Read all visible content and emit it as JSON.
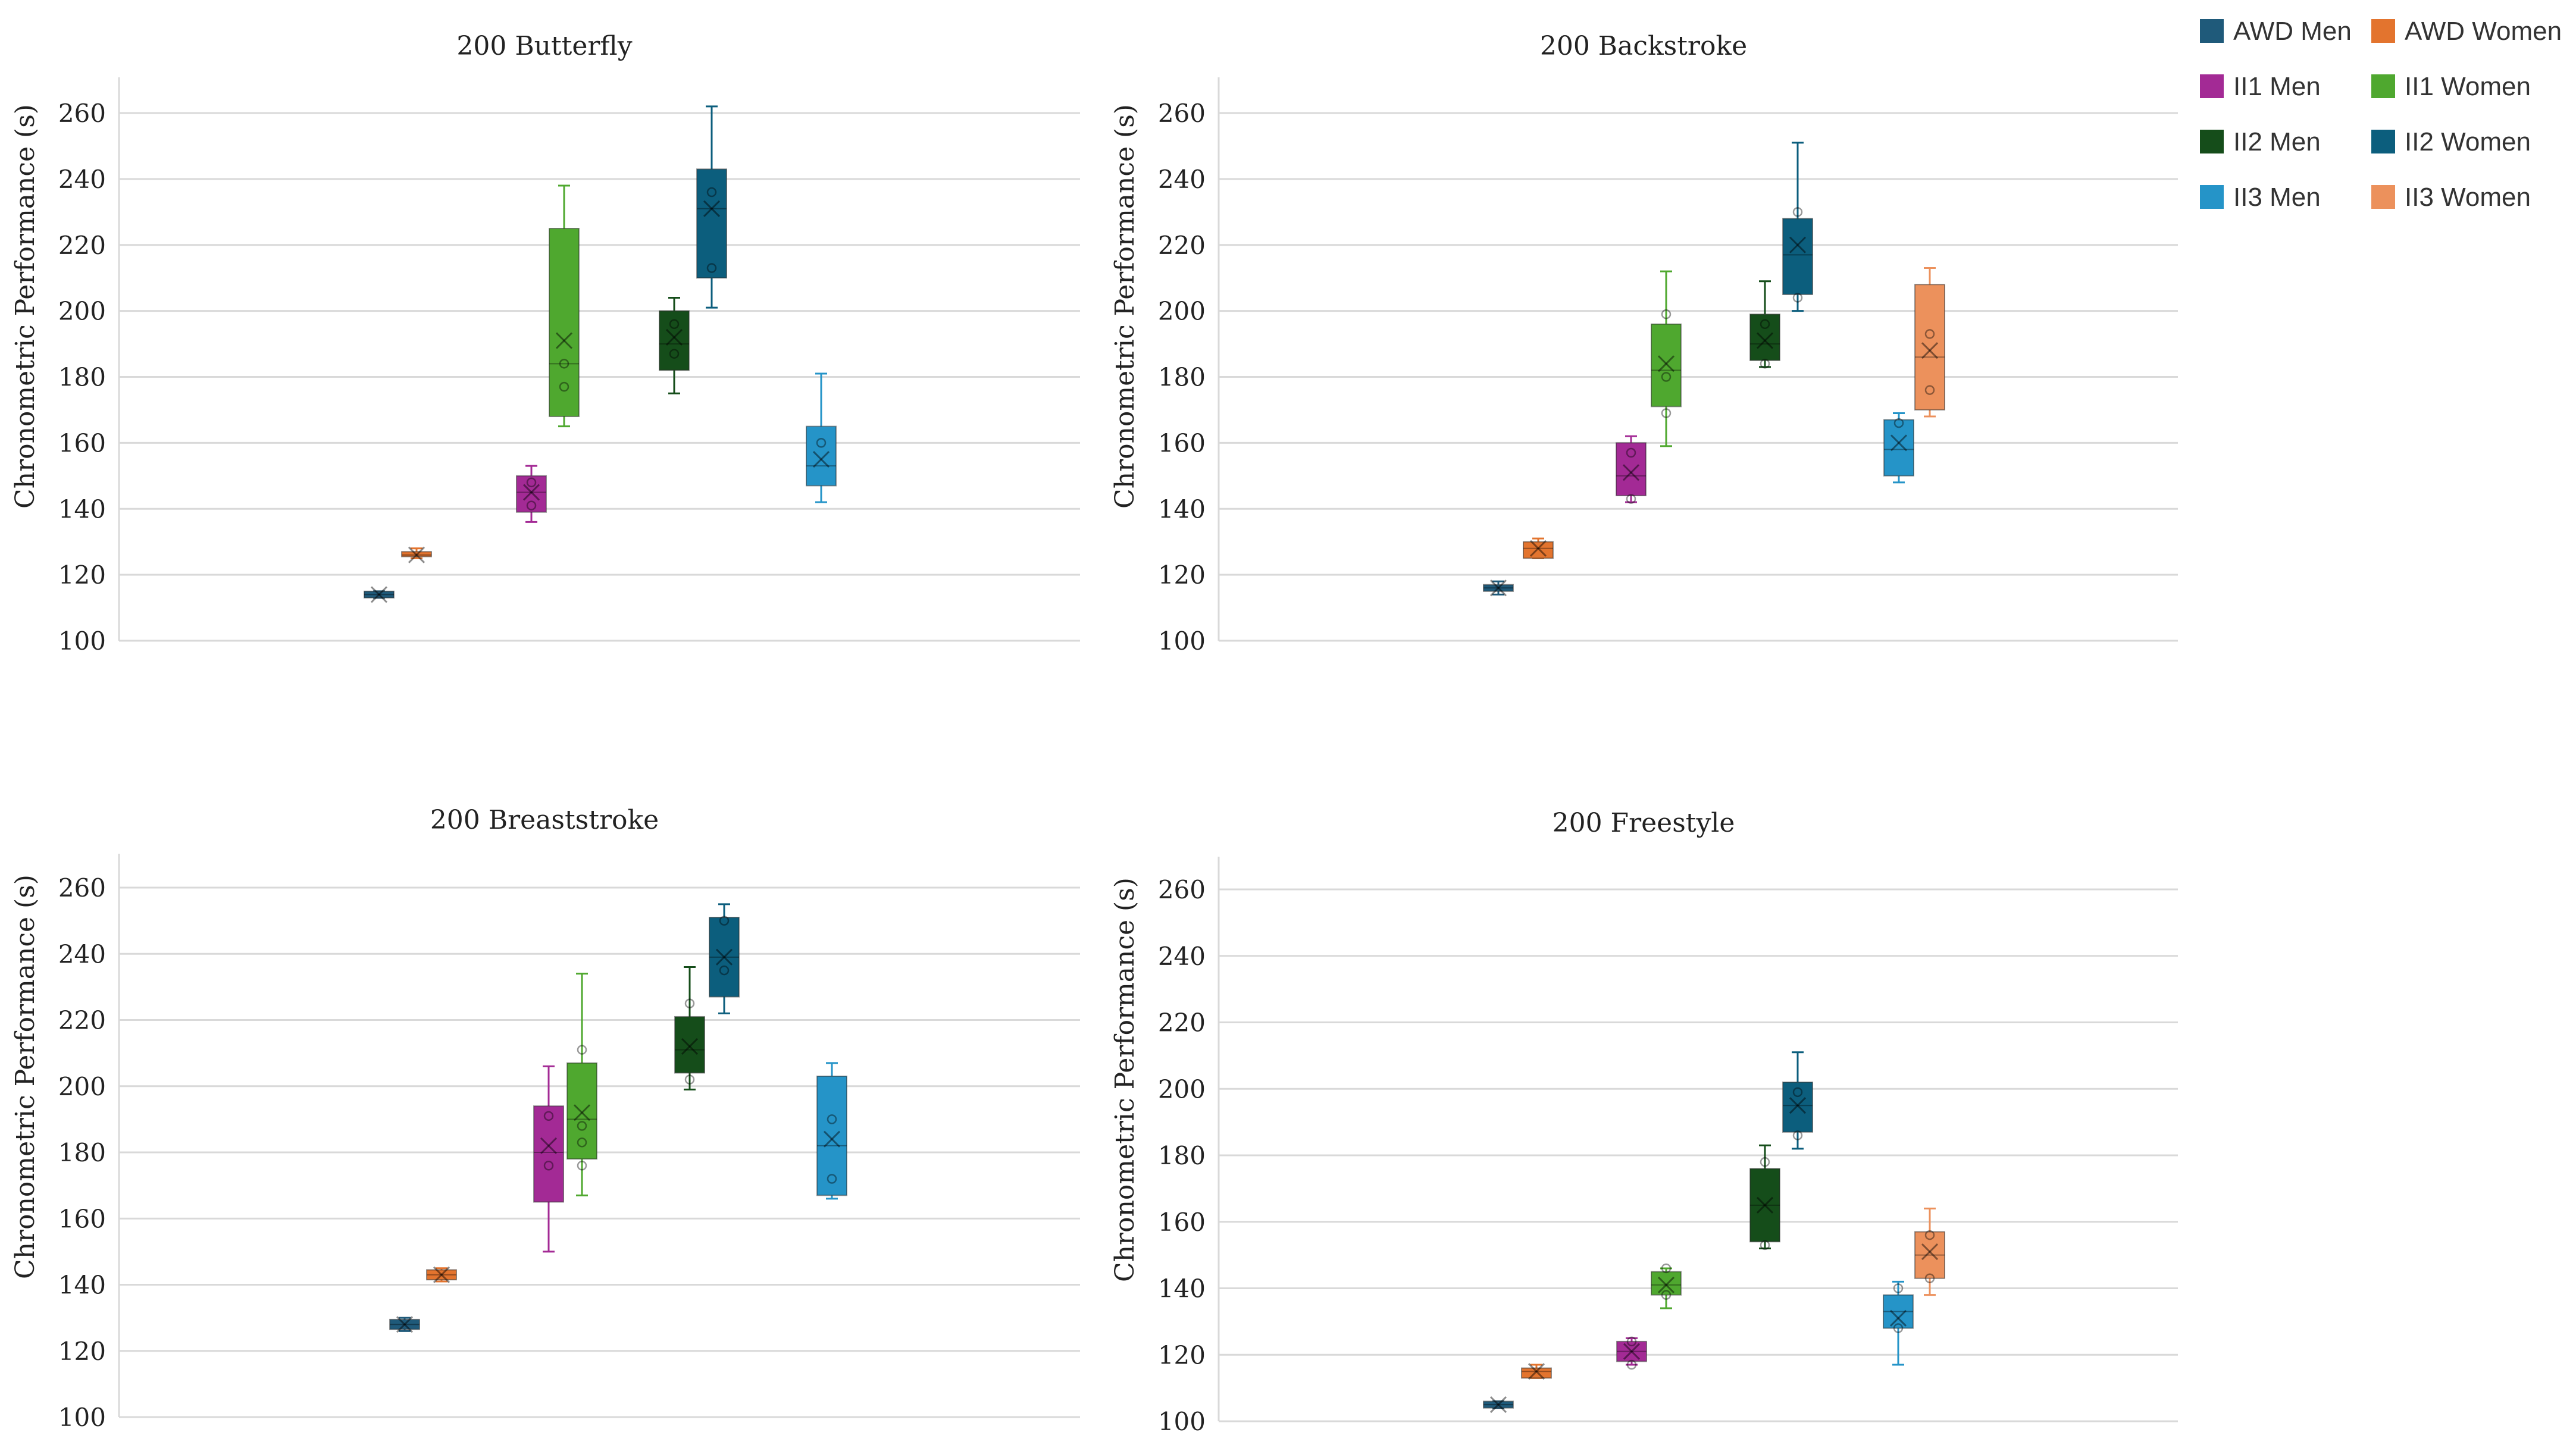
{
  "legend": [
    {
      "name": "AWD Men",
      "color": "#1f5a7a"
    },
    {
      "name": "AWD Women",
      "color": "#e3742e"
    },
    {
      "name": "II1 Men",
      "color": "#a32a95"
    },
    {
      "name": "II1 Women",
      "color": "#4fa82f"
    },
    {
      "name": "II2 Men",
      "color": "#154d1a"
    },
    {
      "name": "II2 Women",
      "color": "#0c5e7d"
    },
    {
      "name": "II3 Men",
      "color": "#2594c8"
    },
    {
      "name": "II3 Women",
      "color": "#ec915c"
    }
  ],
  "chart_data": [
    {
      "type": "box",
      "title": "200 Butterfly",
      "ylabel": "Chronometric Performance (s)",
      "ylim": [
        100,
        260
      ],
      "yticks": [
        "100",
        "120",
        "140",
        "160",
        "180",
        "200",
        "220",
        "240",
        "260"
      ],
      "series": [
        {
          "name": "AWD Men",
          "min": 113,
          "q1": 113,
          "median": 114,
          "q3": 115,
          "max": 115,
          "mean": 114,
          "points": []
        },
        {
          "name": "AWD Women",
          "min": 125,
          "q1": 125.5,
          "median": 126,
          "q3": 127,
          "max": 128,
          "mean": 126,
          "points": []
        },
        {
          "name": "II1 Men",
          "min": 136,
          "q1": 139,
          "median": 145,
          "q3": 150,
          "max": 153,
          "mean": 145,
          "points": [
            141,
            148
          ]
        },
        {
          "name": "II1 Women",
          "min": 165,
          "q1": 168,
          "median": 184,
          "q3": 225,
          "max": 238,
          "mean": 191,
          "points": [
            177,
            184
          ]
        },
        {
          "name": "II2 Men",
          "min": 175,
          "q1": 182,
          "median": 190,
          "q3": 200,
          "max": 204,
          "mean": 192,
          "points": [
            187,
            196
          ]
        },
        {
          "name": "II2 Women",
          "min": 201,
          "q1": 210,
          "median": 231,
          "q3": 243,
          "max": 262,
          "mean": 231,
          "points": [
            213,
            236
          ]
        },
        {
          "name": "II3 Men",
          "min": 142,
          "q1": 147,
          "median": 153,
          "q3": 165,
          "max": 181,
          "mean": 155,
          "points": [
            160
          ]
        }
      ]
    },
    {
      "type": "box",
      "title": "200 Backstroke",
      "ylabel": "Chronometric Performance (s)",
      "ylim": [
        100,
        260
      ],
      "yticks": [
        "100",
        "120",
        "140",
        "160",
        "180",
        "200",
        "220",
        "240",
        "260"
      ],
      "series": [
        {
          "name": "AWD Men",
          "min": 114,
          "q1": 115,
          "median": 116,
          "q3": 117,
          "max": 118,
          "mean": 116,
          "points": []
        },
        {
          "name": "AWD Women",
          "min": 125,
          "q1": 125,
          "median": 128,
          "q3": 130,
          "max": 131,
          "mean": 128,
          "points": []
        },
        {
          "name": "II1 Men",
          "min": 142,
          "q1": 144,
          "median": 150,
          "q3": 160,
          "max": 162,
          "mean": 151,
          "points": [
            143,
            157
          ]
        },
        {
          "name": "II1 Women",
          "min": 159,
          "q1": 171,
          "median": 182,
          "q3": 196,
          "max": 212,
          "mean": 184,
          "points": [
            169,
            180,
            199
          ]
        },
        {
          "name": "II2 Men",
          "min": 183,
          "q1": 185,
          "median": 190,
          "q3": 199,
          "max": 209,
          "mean": 191,
          "points": [
            184,
            196
          ]
        },
        {
          "name": "II2 Women",
          "min": 200,
          "q1": 205,
          "median": 217,
          "q3": 228,
          "max": 251,
          "mean": 220,
          "points": [
            204,
            230
          ]
        },
        {
          "name": "II3 Men",
          "min": 148,
          "q1": 150,
          "median": 158,
          "q3": 167,
          "max": 169,
          "mean": 160,
          "points": [
            166
          ]
        },
        {
          "name": "II3 Women",
          "min": 168,
          "q1": 170,
          "median": 186,
          "q3": 208,
          "max": 213,
          "mean": 188,
          "points": [
            176,
            193
          ]
        }
      ]
    },
    {
      "type": "box",
      "title": "200 Breaststroke",
      "ylabel": "Chronometric Performance (s)",
      "ylim": [
        100,
        260
      ],
      "yticks": [
        "100",
        "120",
        "140",
        "160",
        "180",
        "200",
        "220",
        "240",
        "260"
      ],
      "series": [
        {
          "name": "AWD Men",
          "min": 126,
          "q1": 126.5,
          "median": 128,
          "q3": 129.5,
          "max": 130,
          "mean": 128,
          "points": []
        },
        {
          "name": "AWD Women",
          "min": 141,
          "q1": 141.5,
          "median": 143,
          "q3": 144.5,
          "max": 145,
          "mean": 143,
          "points": []
        },
        {
          "name": "II1 Men",
          "min": 150,
          "q1": 165,
          "median": 180,
          "q3": 194,
          "max": 206,
          "mean": 182,
          "points": [
            176,
            191
          ]
        },
        {
          "name": "II1 Women",
          "min": 167,
          "q1": 178,
          "median": 190,
          "q3": 207,
          "max": 234,
          "mean": 192,
          "points": [
            176,
            183,
            188,
            211
          ]
        },
        {
          "name": "II2 Men",
          "min": 199,
          "q1": 204,
          "median": 211,
          "q3": 221,
          "max": 236,
          "mean": 212,
          "points": [
            202,
            225
          ]
        },
        {
          "name": "II2 Women",
          "min": 222,
          "q1": 227,
          "median": 239,
          "q3": 251,
          "max": 255,
          "mean": 239,
          "points": [
            235,
            250
          ]
        },
        {
          "name": "II3 Men",
          "min": 166,
          "q1": 167,
          "median": 182,
          "q3": 203,
          "max": 207,
          "mean": 184,
          "points": [
            172,
            190
          ]
        }
      ]
    },
    {
      "type": "box",
      "title": "200 Freestyle",
      "ylabel": "Chronometric Performance (s)",
      "ylim": [
        100,
        260
      ],
      "yticks": [
        "100",
        "120",
        "140",
        "160",
        "180",
        "200",
        "220",
        "240",
        "260"
      ],
      "series": [
        {
          "name": "AWD Men",
          "min": 104,
          "q1": 104,
          "median": 105,
          "q3": 106,
          "max": 106,
          "mean": 105,
          "points": []
        },
        {
          "name": "AWD Women",
          "min": 113,
          "q1": 113,
          "median": 115,
          "q3": 116,
          "max": 117,
          "mean": 115,
          "points": []
        },
        {
          "name": "II1 Men",
          "min": 117,
          "q1": 118,
          "median": 121,
          "q3": 124,
          "max": 125,
          "mean": 121,
          "points": [
            117,
            124
          ]
        },
        {
          "name": "II1 Women",
          "min": 134,
          "q1": 138,
          "median": 141,
          "q3": 145,
          "max": 146,
          "mean": 141,
          "points": [
            138,
            146
          ]
        },
        {
          "name": "II2 Men",
          "min": 152,
          "q1": 154,
          "median": 165,
          "q3": 176,
          "max": 183,
          "mean": 165,
          "points": [
            153,
            178
          ]
        },
        {
          "name": "II2 Women",
          "min": 182,
          "q1": 187,
          "median": 195,
          "q3": 202,
          "max": 211,
          "mean": 195,
          "points": [
            186,
            199
          ]
        },
        {
          "name": "II3 Men",
          "min": 117,
          "q1": 128,
          "median": 133,
          "q3": 138,
          "max": 142,
          "mean": 131,
          "points": [
            128,
            140
          ]
        },
        {
          "name": "II3 Women",
          "min": 138,
          "q1": 143,
          "median": 150,
          "q3": 157,
          "max": 164,
          "mean": 151,
          "points": [
            143,
            156
          ]
        }
      ]
    }
  ]
}
